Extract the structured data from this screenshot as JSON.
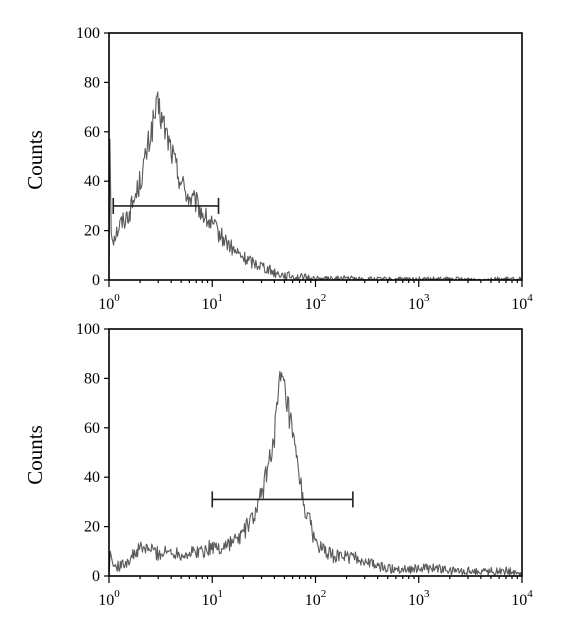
{
  "chart_data": [
    {
      "type": "histogram",
      "x_scale": "log",
      "xlim": [
        1,
        10000
      ],
      "ylim": [
        0,
        100
      ],
      "ylabel": "Counts",
      "xlabel": "",
      "grid": false,
      "y_ticks": [
        "0",
        "20",
        "40",
        "60",
        "80",
        "100"
      ],
      "x_ticks": [
        {
          "base": "10",
          "exp": "0"
        },
        {
          "base": "10",
          "exp": "1"
        },
        {
          "base": "10",
          "exp": "2"
        },
        {
          "base": "10",
          "exp": "3"
        },
        {
          "base": "10",
          "exp": "4"
        }
      ],
      "gate": {
        "x_start": 1.1,
        "x_end": 11.5,
        "y": 30
      },
      "series": [
        {
          "color": "#5a5a5a",
          "points": [
            [
              1.0,
              0
            ],
            [
              1.02,
              57
            ],
            [
              1.05,
              20
            ],
            [
              1.1,
              17
            ],
            [
              1.2,
              20
            ],
            [
              1.3,
              23
            ],
            [
              1.45,
              25
            ],
            [
              1.6,
              28
            ],
            [
              1.8,
              34
            ],
            [
              2.0,
              40
            ],
            [
              2.2,
              47
            ],
            [
              2.5,
              58
            ],
            [
              2.8,
              67
            ],
            [
              3.0,
              70
            ],
            [
              3.3,
              64
            ],
            [
              3.6,
              59
            ],
            [
              4.0,
              53
            ],
            [
              4.5,
              45
            ],
            [
              5.0,
              40
            ],
            [
              5.5,
              36
            ],
            [
              6.0,
              33
            ],
            [
              7.0,
              31
            ],
            [
              8.0,
              27
            ],
            [
              9.0,
              24
            ],
            [
              10,
              22
            ],
            [
              11,
              20
            ],
            [
              12,
              18
            ],
            [
              14,
              15
            ],
            [
              16,
              12
            ],
            [
              20,
              9
            ],
            [
              25,
              7
            ],
            [
              30,
              6
            ],
            [
              40,
              3
            ],
            [
              50,
              2
            ],
            [
              60,
              1.5
            ],
            [
              80,
              1
            ],
            [
              100,
              0.5
            ],
            [
              150,
              0.3
            ],
            [
              200,
              0.8
            ],
            [
              250,
              0.3
            ],
            [
              400,
              0.2
            ],
            [
              1000,
              0.2
            ],
            [
              10000,
              0.2
            ]
          ]
        }
      ]
    },
    {
      "type": "histogram",
      "x_scale": "log",
      "xlim": [
        1,
        10000
      ],
      "ylim": [
        0,
        100
      ],
      "ylabel": "Counts",
      "xlabel": "",
      "grid": false,
      "y_ticks": [
        "0",
        "20",
        "40",
        "60",
        "80",
        "100"
      ],
      "x_ticks": [
        {
          "base": "10",
          "exp": "0"
        },
        {
          "base": "10",
          "exp": "1"
        },
        {
          "base": "10",
          "exp": "2"
        },
        {
          "base": "10",
          "exp": "3"
        },
        {
          "base": "10",
          "exp": "4"
        }
      ],
      "gate": {
        "x_start": 10,
        "x_end": 230,
        "y": 31
      },
      "series": [
        {
          "color": "#5a5a5a",
          "points": [
            [
              1.0,
              0
            ],
            [
              1.03,
              10
            ],
            [
              1.1,
              4
            ],
            [
              1.3,
              4
            ],
            [
              1.6,
              7
            ],
            [
              2.0,
              11
            ],
            [
              2.5,
              11
            ],
            [
              3.0,
              9
            ],
            [
              4.0,
              10
            ],
            [
              5.0,
              9
            ],
            [
              6.0,
              9
            ],
            [
              7.0,
              10
            ],
            [
              8.0,
              10
            ],
            [
              9.0,
              11
            ],
            [
              10,
              12
            ],
            [
              12,
              11
            ],
            [
              14,
              13
            ],
            [
              16,
              14
            ],
            [
              18,
              15
            ],
            [
              20,
              18
            ],
            [
              22,
              20
            ],
            [
              25,
              24
            ],
            [
              28,
              28
            ],
            [
              30,
              33
            ],
            [
              33,
              40
            ],
            [
              36,
              48
            ],
            [
              40,
              58
            ],
            [
              43,
              70
            ],
            [
              46,
              79
            ],
            [
              48,
              79
            ],
            [
              50,
              74
            ],
            [
              55,
              66
            ],
            [
              60,
              56
            ],
            [
              65,
              47
            ],
            [
              70,
              40
            ],
            [
              75,
              31
            ],
            [
              80,
              27
            ],
            [
              90,
              20
            ],
            [
              100,
              14
            ],
            [
              120,
              10
            ],
            [
              150,
              8
            ],
            [
              200,
              8
            ],
            [
              250,
              7
            ],
            [
              300,
              6
            ],
            [
              400,
              4
            ],
            [
              500,
              3
            ],
            [
              700,
              3
            ],
            [
              1000,
              3
            ],
            [
              1500,
              3
            ],
            [
              2000,
              2
            ],
            [
              3000,
              2
            ],
            [
              5000,
              2
            ],
            [
              7000,
              2
            ],
            [
              10000,
              1
            ]
          ]
        }
      ]
    }
  ]
}
